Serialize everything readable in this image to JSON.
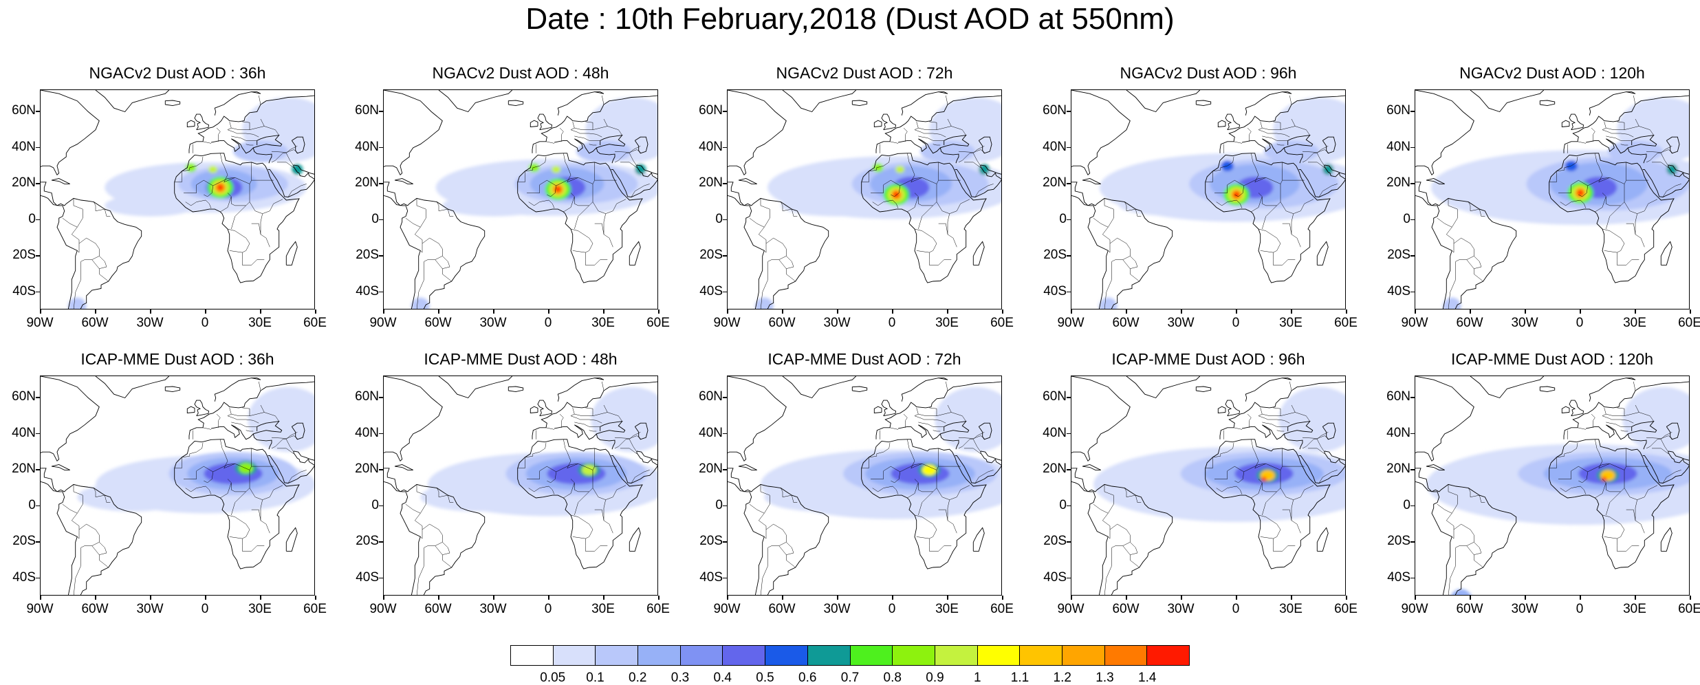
{
  "title": "Date : 10th February,2018 (Dust AOD at 550nm)",
  "rows": [
    {
      "model": "NGACv2",
      "panels": [
        {
          "title": "NGACv2 Dust AOD : 36h"
        },
        {
          "title": "NGACv2 Dust AOD : 48h"
        },
        {
          "title": "NGACv2 Dust AOD : 72h"
        },
        {
          "title": "NGACv2 Dust AOD : 96h"
        },
        {
          "title": "NGACv2 Dust AOD : 120h"
        }
      ]
    },
    {
      "model": "ICAP-MME",
      "panels": [
        {
          "title": "ICAP-MME Dust AOD : 36h"
        },
        {
          "title": "ICAP-MME Dust AOD : 48h"
        },
        {
          "title": "ICAP-MME Dust AOD : 72h"
        },
        {
          "title": "ICAP-MME Dust AOD : 96h"
        },
        {
          "title": "ICAP-MME Dust AOD : 120h"
        }
      ]
    }
  ],
  "lat_ticks": [
    "60N",
    "40N",
    "20N",
    "0",
    "20S",
    "40S"
  ],
  "lon_ticks": [
    "90W",
    "60W",
    "30W",
    "0",
    "30E",
    "60E"
  ],
  "colorbar": {
    "labels": [
      "0.05",
      "0.1",
      "0.2",
      "0.3",
      "0.4",
      "0.5",
      "0.6",
      "0.7",
      "0.8",
      "0.9",
      "1",
      "1.1",
      "1.2",
      "1.3",
      "1.4"
    ],
    "colors": [
      "#ffffff",
      "#d8e0fb",
      "#b9c8fa",
      "#97b1f7",
      "#7f92f3",
      "#6366ec",
      "#1a5ae8",
      "#0f9a96",
      "#4ef01e",
      "#8df20e",
      "#c4f23e",
      "#ffff00",
      "#ffc400",
      "#ffa500",
      "#ff7a00",
      "#ff1a00"
    ]
  }
}
